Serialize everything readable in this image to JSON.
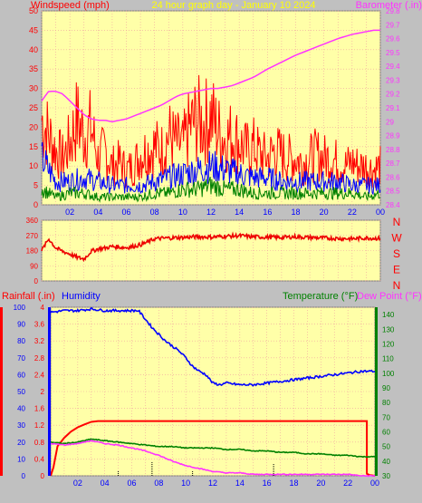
{
  "header": {
    "left_label": "Windspeed (mph)",
    "center_label": "24 hour graph day - January 10 2024",
    "right_label": "Barometer (.in)"
  },
  "colors": {
    "background": "#c0c0c0",
    "plot_bg": "#ffffa8",
    "grid": "#f0a0a0",
    "wind_gust": "#ff0000",
    "wind_avg": "#0000ff",
    "wind_min": "#008000",
    "barometer": "#ff33ff",
    "direction": "#ee0000",
    "rainfall": "#ff0000",
    "humidity": "#0000ff",
    "temperature": "#008000",
    "dew_point": "#ff33ff",
    "center_title": "#ffff00"
  },
  "x_ticks": [
    "02",
    "04",
    "06",
    "08",
    "10",
    "12",
    "14",
    "16",
    "18",
    "20",
    "22",
    "00"
  ],
  "lower_legend": {
    "rainfall": "Rainfall (.in)",
    "humidity": "Humidity",
    "temperature": "Temperature (°F)",
    "dew_point": "Dew Point (°F)"
  },
  "chart_data": [
    {
      "type": "line",
      "title": "24 hour graph day - January 10 2024",
      "xlabel": "",
      "ylabel": "Windspeed (mph)",
      "ylabel_right": "Barometer (.in)",
      "x_range_hours": [
        0,
        24
      ],
      "ylim": [
        0,
        50
      ],
      "ylim_right": [
        28.4,
        29.8
      ],
      "yticks": [
        0,
        5,
        10,
        15,
        20,
        25,
        30,
        35,
        40,
        45,
        50
      ],
      "yticks_right": [
        "28.4",
        "28.5",
        "28.6",
        "28.7",
        "28.8",
        "28.9",
        "29",
        "29.1",
        "29.2",
        "29.3",
        "29.4",
        "29.5",
        "29.6",
        "29.7",
        "29.8"
      ],
      "grid": true,
      "series": [
        {
          "name": "",
          "axis": "left",
          "color": "#ff0000",
          "x": [
            0,
            0.5,
            1,
            1.5,
            2,
            2.5,
            3,
            3.5,
            4,
            4.5,
            5,
            5.5,
            6,
            6.5,
            7,
            7.5,
            8,
            8.5,
            9,
            9.5,
            10,
            10.5,
            11,
            11.5,
            12,
            12.5,
            13,
            13.5,
            14,
            14.5,
            15,
            15.5,
            16,
            16.5,
            17,
            17.5,
            18,
            18.5,
            19,
            19.5,
            20,
            20.5,
            21,
            21.5,
            22,
            22.5,
            23,
            23.5,
            24
          ],
          "values": [
            22,
            18,
            14,
            12,
            16,
            22,
            18,
            20,
            12,
            14,
            10,
            11,
            9,
            10,
            13,
            14,
            15,
            14,
            18,
            16,
            15,
            20,
            22,
            21,
            23,
            19,
            17,
            18,
            16,
            14,
            15,
            13,
            12,
            14,
            13,
            12,
            12,
            11,
            12,
            13,
            12,
            12,
            11,
            10,
            11,
            10,
            10,
            9,
            10
          ]
        },
        {
          "name": "",
          "axis": "left",
          "color": "#0000ff",
          "x": [
            0,
            1,
            2,
            3,
            4,
            5,
            6,
            7,
            8,
            9,
            10,
            11,
            12,
            13,
            14,
            15,
            16,
            17,
            18,
            19,
            20,
            21,
            22,
            23,
            24
          ],
          "values": [
            12,
            6,
            6,
            7,
            6,
            5,
            5,
            5,
            6,
            7,
            8,
            9,
            10,
            9,
            8,
            7,
            7,
            6,
            6,
            6,
            6,
            6,
            5,
            5,
            5
          ]
        },
        {
          "name": "",
          "axis": "left",
          "color": "#008000",
          "x": [
            0,
            1,
            2,
            3,
            4,
            5,
            6,
            7,
            8,
            9,
            10,
            11,
            12,
            13,
            14,
            15,
            16,
            17,
            18,
            19,
            20,
            21,
            22,
            23,
            24
          ],
          "values": [
            4,
            2,
            3,
            3,
            2,
            2,
            2,
            2,
            3,
            3,
            4,
            4,
            5,
            4,
            4,
            3,
            3,
            3,
            3,
            3,
            3,
            3,
            3,
            2,
            3
          ]
        },
        {
          "name": "",
          "axis": "right",
          "color": "#ff33ff",
          "x": [
            0,
            0.5,
            1,
            1.5,
            2,
            2.5,
            3,
            3.5,
            4,
            4.5,
            5,
            5.5,
            6,
            6.5,
            7,
            7.5,
            8,
            8.5,
            9,
            9.5,
            10,
            10.5,
            11,
            11.5,
            12,
            12.5,
            13,
            13.5,
            14,
            15,
            16,
            17,
            18,
            19,
            20,
            21,
            22,
            23,
            23.5,
            24
          ],
          "values": [
            29.15,
            29.22,
            29.22,
            29.2,
            29.15,
            29.1,
            29.05,
            29.02,
            29.01,
            29.01,
            29.0,
            29.01,
            29.02,
            29.04,
            29.06,
            29.08,
            29.1,
            29.12,
            29.15,
            29.18,
            29.2,
            29.21,
            29.22,
            29.23,
            29.24,
            29.24,
            29.25,
            29.26,
            29.28,
            29.32,
            29.38,
            29.43,
            29.48,
            29.52,
            29.56,
            29.6,
            29.63,
            29.65,
            29.66,
            29.66
          ]
        }
      ]
    },
    {
      "type": "line",
      "title": "",
      "xlabel": "",
      "ylabel": "",
      "x_range_hours": [
        0,
        24
      ],
      "ylim": [
        0,
        360
      ],
      "yticks": [
        0,
        90,
        180,
        270,
        360
      ],
      "compass_labels": [
        "N",
        "W",
        "S",
        "E",
        "N"
      ],
      "grid": true,
      "series": [
        {
          "name": "",
          "color": "#ee0000",
          "x": [
            0,
            0.5,
            1,
            1.5,
            2,
            2.5,
            3,
            3.5,
            4,
            4.5,
            5,
            5.5,
            6,
            6.5,
            7,
            7.5,
            8,
            9,
            10,
            11,
            12,
            13,
            14,
            15,
            16,
            17,
            18,
            19,
            20,
            21,
            22,
            23,
            24
          ],
          "values": [
            180,
            250,
            195,
            175,
            160,
            140,
            130,
            175,
            190,
            195,
            205,
            200,
            198,
            205,
            215,
            230,
            250,
            255,
            258,
            262,
            260,
            265,
            268,
            262,
            260,
            258,
            262,
            258,
            255,
            252,
            250,
            255,
            252
          ]
        }
      ]
    },
    {
      "type": "line",
      "title": "",
      "xlabel": "",
      "ylabel": "Rainfall (.in)",
      "ylabel_right": "Temperature (°F)",
      "x_range_hours": [
        0,
        24
      ],
      "ylim": [
        0,
        4.0
      ],
      "ylim_right": [
        30,
        145
      ],
      "humidity_ticks": [
        0,
        10,
        20,
        30,
        40,
        50,
        60,
        70,
        80,
        90,
        100
      ],
      "yticks": [
        "0",
        "0.4",
        "0.8",
        "1.2",
        "1.6",
        "2",
        "2.4",
        "2.8",
        "3.2",
        "3.6",
        "4"
      ],
      "yticks_right": [
        30,
        40,
        50,
        60,
        70,
        80,
        90,
        100,
        110,
        120,
        130,
        140
      ],
      "grid": true,
      "series": [
        {
          "name": "Rainfall (.in)",
          "axis": "rain",
          "color": "#ff0000",
          "x": [
            0,
            0.2,
            0.5,
            1,
            1.5,
            2,
            2.5,
            3,
            3.5,
            4,
            23.4,
            23.4,
            23.6,
            24
          ],
          "values": [
            0,
            0.2,
            0.7,
            0.9,
            1.05,
            1.15,
            1.22,
            1.28,
            1.3,
            1.3,
            1.3,
            0.05,
            0.02,
            0
          ]
        },
        {
          "name": "Humidity",
          "axis": "humidity",
          "color": "#0000ff",
          "x": [
            0,
            1,
            2,
            3,
            4,
            5,
            6,
            6.5,
            7,
            7.5,
            8,
            8.5,
            9,
            9.5,
            10,
            10.5,
            11,
            11.5,
            12,
            12.5,
            13,
            14,
            15,
            16,
            17,
            18,
            19,
            20,
            21,
            22,
            23,
            24
          ],
          "values": [
            97,
            98,
            98,
            99,
            98,
            98,
            98,
            98,
            93,
            88,
            84,
            80,
            77,
            74,
            70,
            65,
            62,
            60,
            55,
            54,
            55,
            54,
            54,
            55,
            56,
            57,
            58,
            59,
            60,
            61,
            62,
            62
          ]
        },
        {
          "name": "Temperature (°F)",
          "axis": "temp",
          "color": "#008000",
          "x": [
            0,
            1,
            2,
            3,
            4,
            5,
            6,
            7,
            8,
            9,
            10,
            11,
            12,
            13,
            14,
            15,
            16,
            17,
            18,
            19,
            20,
            21,
            22,
            23,
            24
          ],
          "values": [
            53,
            52,
            53,
            55,
            54,
            53,
            52,
            51,
            50,
            50,
            49,
            49,
            49,
            48,
            48,
            47,
            47,
            46,
            46,
            45,
            45,
            44,
            44,
            43,
            43
          ]
        },
        {
          "name": "Dew Point (°F)",
          "axis": "temp",
          "color": "#ff33ff",
          "x": [
            0,
            1,
            2,
            3,
            4,
            5,
            6,
            7,
            8,
            9,
            10,
            11,
            12,
            13,
            14,
            15,
            16,
            17,
            18,
            19,
            20,
            21,
            22,
            23,
            24
          ],
          "values": [
            52,
            51,
            52,
            54,
            52,
            51,
            49,
            47,
            44,
            40,
            37,
            35,
            33,
            32,
            32,
            31,
            31,
            31,
            31,
            31,
            31,
            31,
            31,
            30,
            30
          ]
        }
      ]
    }
  ]
}
